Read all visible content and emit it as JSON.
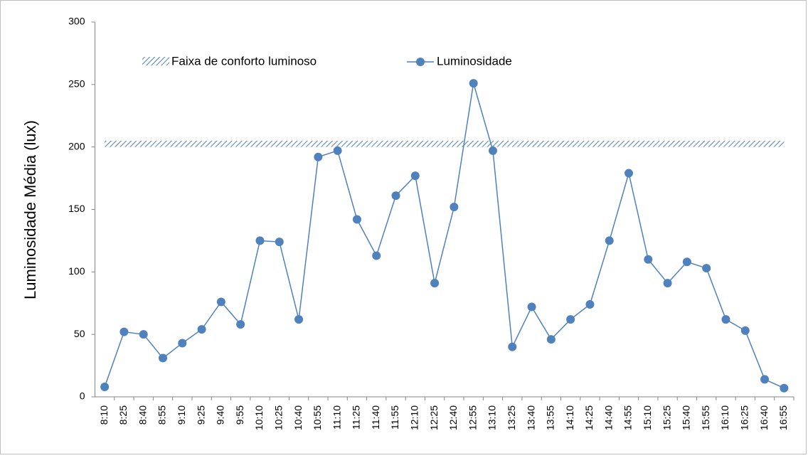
{
  "chart_data": {
    "type": "line",
    "y_label": "Luminosidade Média  (lux)",
    "categories": [
      "8:10",
      "8:25",
      "8:40",
      "8:55",
      "9:10",
      "9:25",
      "9:40",
      "9:55",
      "10:10",
      "10:25",
      "10:40",
      "10:55",
      "11:10",
      "11:25",
      "11:40",
      "11:55",
      "12:10",
      "12:25",
      "12:40",
      "12:55",
      "13:10",
      "13:25",
      "13:40",
      "13:55",
      "14:10",
      "14:25",
      "14:40",
      "14:55",
      "15:10",
      "15:25",
      "15:40",
      "15:55",
      "16:10",
      "16:25",
      "16:40",
      "16:55"
    ],
    "series": [
      {
        "name": "Luminosidade",
        "color": "#4f81bd",
        "values": [
          8,
          52,
          50,
          31,
          43,
          54,
          76,
          58,
          125,
          124,
          62,
          192,
          197,
          142,
          113,
          161,
          177,
          91,
          152,
          251,
          197,
          40,
          72,
          46,
          62,
          74,
          125,
          179,
          110,
          91,
          108,
          103,
          62,
          53,
          14,
          7
        ]
      }
    ],
    "band": {
      "name": "Faixa de conforto luminoso",
      "color": "#4f81bd",
      "from": 200,
      "to": 205
    },
    "ylim": [
      0,
      300
    ],
    "yticks": [
      0,
      50,
      100,
      150,
      200,
      250,
      300
    ],
    "grid": false
  }
}
